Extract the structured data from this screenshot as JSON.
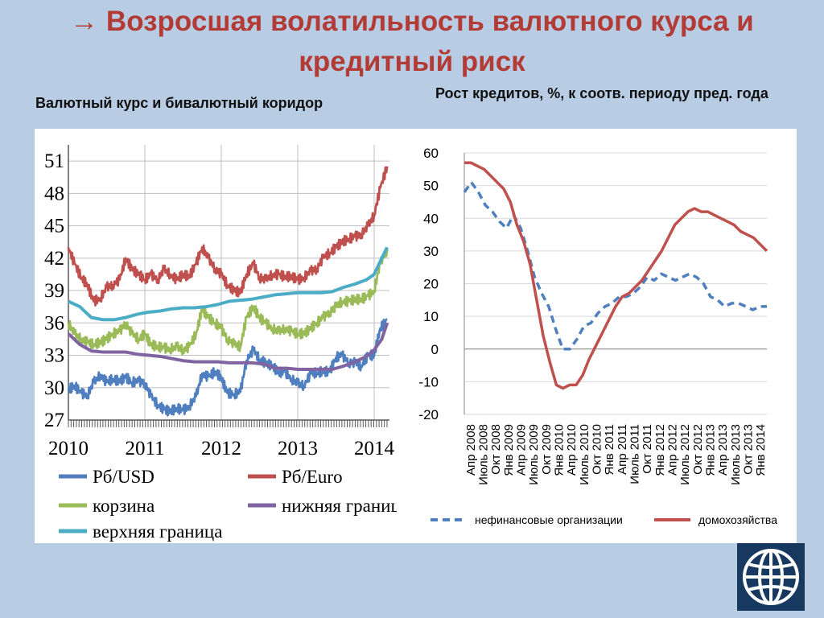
{
  "title": "→ Возросшая волатильность валютного курса и кредитный риск",
  "subtitle_left": "Валютный курс и бивалютный коридор",
  "subtitle_right": "Рост кредитов, %, к соотв. периоду пред. года",
  "logo": "world-bank-globe-icon",
  "chart_data": [
    {
      "type": "line",
      "title": "Валютный курс и бивалютный коридор",
      "x_tick_labels": [
        "2010",
        "2011",
        "2012",
        "2013",
        "2014"
      ],
      "y_tick_labels": [
        "27",
        "30",
        "33",
        "36",
        "39",
        "42",
        "45",
        "48",
        "51"
      ],
      "xlim": [
        2010.0,
        2014.2
      ],
      "ylim": [
        27,
        52.5
      ],
      "grid": true,
      "legend_position": "bottom",
      "series": [
        {
          "name": "Рб/USD",
          "color": "#4f7fbe",
          "x": [
            2010.0,
            2010.08,
            2010.17,
            2010.25,
            2010.33,
            2010.42,
            2010.5,
            2010.58,
            2010.67,
            2010.75,
            2010.83,
            2010.92,
            2011.0,
            2011.08,
            2011.17,
            2011.25,
            2011.33,
            2011.42,
            2011.5,
            2011.58,
            2011.67,
            2011.75,
            2011.83,
            2011.92,
            2012.0,
            2012.08,
            2012.17,
            2012.25,
            2012.33,
            2012.42,
            2012.5,
            2012.58,
            2012.67,
            2012.75,
            2012.83,
            2012.92,
            2013.0,
            2013.08,
            2013.17,
            2013.25,
            2013.33,
            2013.42,
            2013.5,
            2013.58,
            2013.67,
            2013.75,
            2013.83,
            2013.92,
            2014.0,
            2014.08,
            2014.17
          ],
          "values": [
            29.8,
            30.2,
            29.5,
            29.3,
            30.5,
            31.2,
            30.5,
            30.8,
            30.6,
            31.0,
            30.5,
            30.6,
            30.4,
            29.2,
            28.4,
            28.0,
            27.8,
            28.1,
            27.9,
            28.3,
            29.2,
            31.3,
            31.0,
            31.5,
            30.9,
            29.5,
            29.4,
            29.6,
            32.5,
            33.5,
            32.6,
            32.3,
            32.0,
            31.4,
            31.5,
            30.8,
            30.4,
            30.2,
            31.3,
            31.4,
            31.5,
            31.5,
            32.8,
            33.0,
            32.3,
            32.3,
            32.0,
            33.0,
            33.0,
            35.5,
            36.3
          ]
        },
        {
          "name": "Рб/Euro",
          "color": "#c0504d",
          "x": [
            2010.0,
            2010.08,
            2010.17,
            2010.25,
            2010.33,
            2010.42,
            2010.5,
            2010.58,
            2010.67,
            2010.75,
            2010.83,
            2010.92,
            2011.0,
            2011.08,
            2011.17,
            2011.25,
            2011.33,
            2011.42,
            2011.5,
            2011.58,
            2011.67,
            2011.75,
            2011.83,
            2011.92,
            2012.0,
            2012.08,
            2012.17,
            2012.25,
            2012.33,
            2012.42,
            2012.5,
            2012.58,
            2012.67,
            2012.75,
            2012.83,
            2012.92,
            2013.0,
            2013.08,
            2013.17,
            2013.25,
            2013.33,
            2013.42,
            2013.5,
            2013.58,
            2013.67,
            2013.75,
            2013.83,
            2013.92,
            2014.0,
            2014.08,
            2014.17
          ],
          "values": [
            43.0,
            41.5,
            40.2,
            39.5,
            38.0,
            38.3,
            39.3,
            39.5,
            40.0,
            42.0,
            41.0,
            40.5,
            40.0,
            40.5,
            40.0,
            41.0,
            40.5,
            40.0,
            40.5,
            40.3,
            41.5,
            43.0,
            42.0,
            41.0,
            40.5,
            39.5,
            39.0,
            38.8,
            40.5,
            41.5,
            40.2,
            40.0,
            40.5,
            40.5,
            40.3,
            40.3,
            40.0,
            40.2,
            40.8,
            41.0,
            42.0,
            42.5,
            43.0,
            43.5,
            43.8,
            44.0,
            44.2,
            45.0,
            46.0,
            48.5,
            50.5
          ]
        },
        {
          "name": "корзина",
          "color": "#9bbb59",
          "x": [
            2010.0,
            2010.08,
            2010.17,
            2010.25,
            2010.33,
            2010.42,
            2010.5,
            2010.58,
            2010.67,
            2010.75,
            2010.83,
            2010.92,
            2011.0,
            2011.08,
            2011.17,
            2011.25,
            2011.33,
            2011.42,
            2011.5,
            2011.58,
            2011.67,
            2011.75,
            2011.83,
            2011.92,
            2012.0,
            2012.08,
            2012.17,
            2012.25,
            2012.33,
            2012.42,
            2012.5,
            2012.58,
            2012.67,
            2012.75,
            2012.83,
            2012.92,
            2013.0,
            2013.08,
            2013.17,
            2013.25,
            2013.33,
            2013.42,
            2013.5,
            2013.58,
            2013.67,
            2013.75,
            2013.83,
            2013.92,
            2014.0,
            2014.08,
            2014.17
          ],
          "values": [
            36.0,
            35.0,
            34.5,
            34.2,
            34.0,
            34.2,
            34.5,
            35.0,
            35.2,
            36.0,
            35.0,
            34.5,
            35.0,
            34.0,
            33.8,
            33.7,
            33.6,
            33.8,
            33.5,
            33.8,
            35.0,
            37.3,
            36.5,
            36.0,
            35.5,
            34.5,
            34.0,
            33.8,
            36.5,
            37.5,
            36.5,
            36.0,
            35.5,
            35.2,
            35.5,
            35.2,
            35.0,
            35.0,
            35.5,
            36.0,
            36.5,
            37.0,
            37.5,
            38.0,
            38.0,
            38.2,
            38.2,
            38.5,
            39.0,
            41.5,
            42.8
          ]
        },
        {
          "name": "нижняя граница",
          "color": "#8064a2",
          "x": [
            2010.0,
            2010.15,
            2010.3,
            2010.45,
            2010.6,
            2010.75,
            2010.9,
            2011.05,
            2011.2,
            2011.35,
            2011.5,
            2011.65,
            2011.8,
            2011.95,
            2012.1,
            2012.25,
            2012.4,
            2012.55,
            2012.7,
            2012.85,
            2013.0,
            2013.15,
            2013.3,
            2013.45,
            2013.6,
            2013.75,
            2013.9,
            2014.0,
            2014.1,
            2014.17
          ],
          "values": [
            35.0,
            34.0,
            33.4,
            33.3,
            33.3,
            33.3,
            33.1,
            33.0,
            32.9,
            32.7,
            32.5,
            32.4,
            32.4,
            32.4,
            32.3,
            32.3,
            32.3,
            32.2,
            31.8,
            31.8,
            31.7,
            31.7,
            31.7,
            31.7,
            32.0,
            32.4,
            32.9,
            33.5,
            34.5,
            36.0
          ]
        },
        {
          "name": "верхняя граница",
          "color": "#4bacc6",
          "x": [
            2010.0,
            2010.15,
            2010.3,
            2010.45,
            2010.6,
            2010.75,
            2010.9,
            2011.05,
            2011.2,
            2011.35,
            2011.5,
            2011.65,
            2011.8,
            2011.95,
            2012.1,
            2012.25,
            2012.4,
            2012.55,
            2012.7,
            2012.85,
            2013.0,
            2013.15,
            2013.3,
            2013.45,
            2013.6,
            2013.75,
            2013.9,
            2014.0,
            2014.1,
            2014.17
          ],
          "values": [
            38.0,
            37.5,
            36.5,
            36.3,
            36.3,
            36.5,
            36.8,
            37.0,
            37.1,
            37.3,
            37.4,
            37.4,
            37.5,
            37.7,
            38.0,
            38.1,
            38.2,
            38.4,
            38.6,
            38.7,
            38.8,
            38.8,
            38.8,
            38.9,
            39.3,
            39.6,
            40.0,
            40.5,
            42.0,
            43.0
          ]
        }
      ]
    },
    {
      "type": "line",
      "title": "Рост кредитов, %, к соотв. периоду пред. года",
      "x_tick_labels": [
        "Апр 2008",
        "Июль 2008",
        "Окт 2008",
        "Янв 2009",
        "Апр 2009",
        "Июль 2009",
        "Окт 2009",
        "Янв 2010",
        "Апр 2010",
        "Июль 2010",
        "Окт 2010",
        "Янв 2011",
        "Апр 2011",
        "Июль 2011",
        "Окт 2011",
        "Янв 2012",
        "Апр 2012",
        "Июль 2012",
        "Окт 2012",
        "Янв 2013",
        "Апр 2013",
        "Июль 2013",
        "Окт 2013",
        "Янв 2014"
      ],
      "y_tick_labels": [
        "60",
        "50",
        "40",
        "30",
        "20",
        "10",
        "0",
        "-10",
        "-20"
      ],
      "ylim": [
        -20,
        60
      ],
      "grid": true,
      "legend_position": "bottom",
      "series": [
        {
          "name": "нефинансовые организации",
          "color": "#4f7fbe",
          "dash": true,
          "values": [
            48,
            51,
            48,
            44,
            42,
            39,
            37,
            41,
            37,
            30,
            22,
            17,
            13,
            6,
            0,
            0,
            3,
            7,
            8,
            11,
            13,
            14,
            16,
            16,
            17,
            19,
            22,
            21,
            23,
            22,
            21,
            22,
            23,
            22,
            20,
            16,
            15,
            13,
            14,
            14,
            13,
            12,
            13,
            13
          ]
        },
        {
          "name": "домохозяйства",
          "color": "#c0504d",
          "values": [
            57,
            57,
            56,
            55,
            53,
            51,
            49,
            45,
            38,
            33,
            26,
            15,
            4,
            -4,
            -11,
            -12,
            -11,
            -11,
            -8,
            -3,
            1,
            5,
            9,
            13,
            16,
            17,
            19,
            21,
            24,
            27,
            30,
            34,
            38,
            40,
            42,
            43,
            42,
            42,
            41,
            40,
            39,
            38,
            36,
            35,
            34,
            32,
            30
          ]
        }
      ]
    }
  ]
}
